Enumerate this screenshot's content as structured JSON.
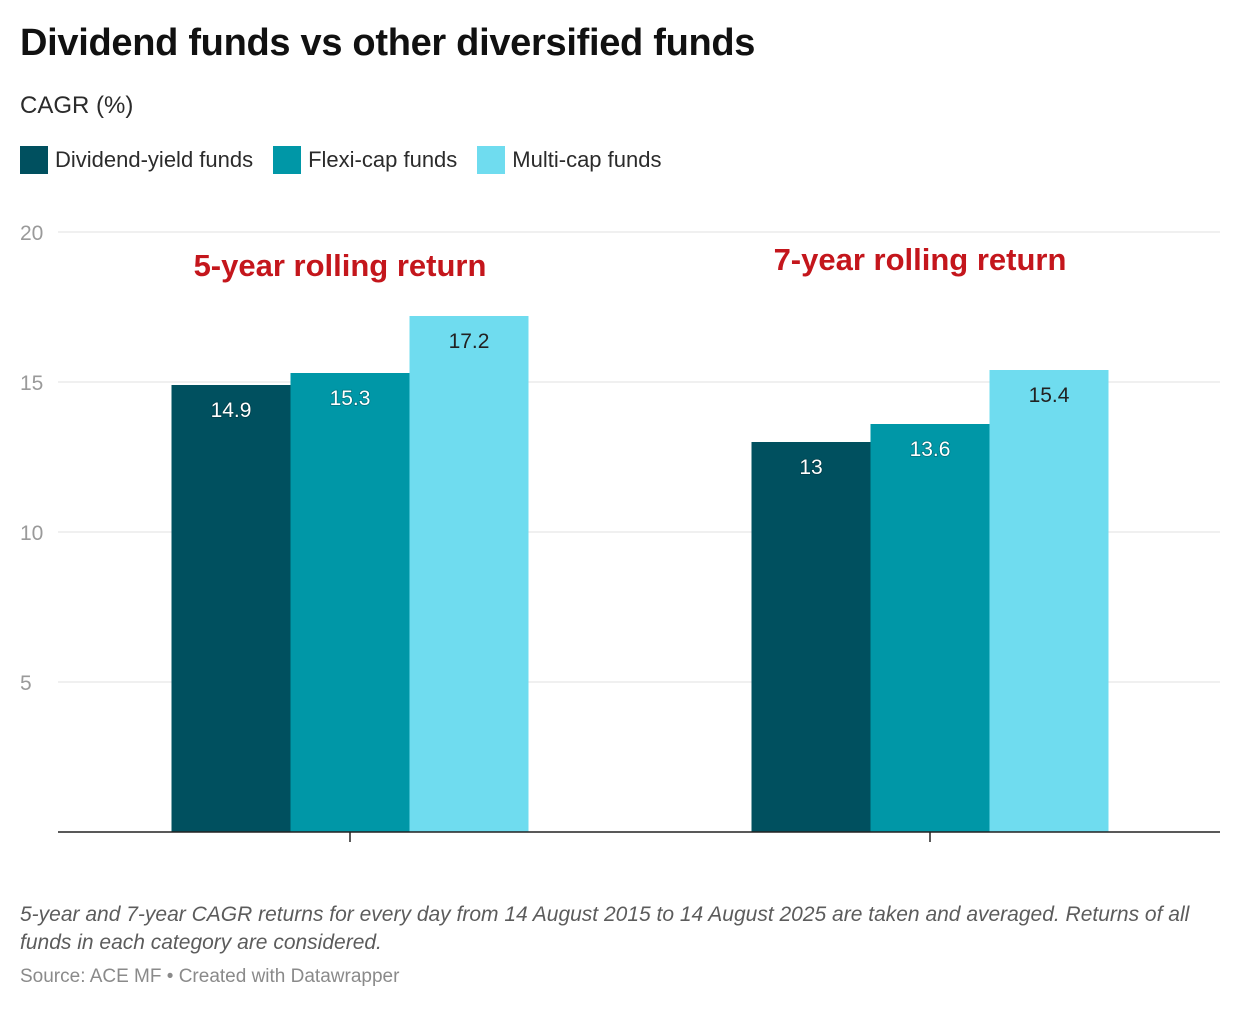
{
  "title": "Dividend funds vs other diversified funds",
  "subtitle": "CAGR (%)",
  "colors": {
    "dividend_yield": "#00505f",
    "flexi_cap": "#0097a7",
    "multi_cap": "#6fdcef",
    "annotation": "#c4161c"
  },
  "chart_data": {
    "type": "bar",
    "title": "Dividend funds vs other diversified funds",
    "ylabel": "CAGR (%)",
    "xlabel": "",
    "categories": [
      "5-year rolling return",
      "7-year rolling return"
    ],
    "series": [
      {
        "name": "Dividend-yield funds",
        "values": [
          14.9,
          13
        ],
        "labels": [
          "14.9",
          "13"
        ]
      },
      {
        "name": "Flexi-cap funds",
        "values": [
          15.3,
          13.6
        ],
        "labels": [
          "15.3",
          "13.6"
        ]
      },
      {
        "name": "Multi-cap funds",
        "values": [
          17.2,
          15.4
        ],
        "labels": [
          "17.2",
          "15.4"
        ]
      }
    ],
    "ylim": [
      0,
      20
    ],
    "yticks": [
      5,
      10,
      15,
      20
    ],
    "ytick_labels": [
      "5",
      "10",
      "15",
      "20"
    ],
    "grid": true,
    "legend": "top-left"
  },
  "footer": {
    "note": "5-year and 7-year CAGR returns for every day from 14 August 2015 to 14 August 2025 are taken and averaged. Returns of all funds in each category are considered.",
    "source": "Source: ACE MF • Created with Datawrapper"
  }
}
